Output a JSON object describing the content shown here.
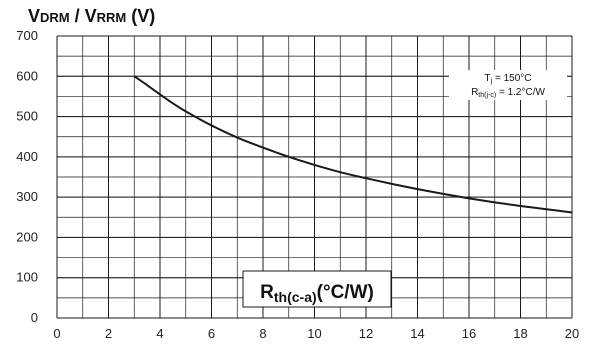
{
  "chart_data": {
    "type": "line",
    "title": {
      "v1_main": "V",
      "v1_sub": "DRM",
      "sep": " / ",
      "v2_main": "V",
      "v2_sub": "RRM",
      "unit": " (V)"
    },
    "xlabel": {
      "main": "R",
      "sub": "th(c-a)",
      "unit": "(°C/W)"
    },
    "annotation": {
      "line1_main": "T",
      "line1_sub": "j",
      "line1_rest": " = 150°C",
      "line2_main": "R",
      "line2_sub": "th(j-c)",
      "line2_rest": " = 1.2°C/W"
    },
    "xlim": [
      0,
      20
    ],
    "ylim": [
      0,
      700
    ],
    "x_ticks": [
      0,
      2,
      4,
      6,
      8,
      10,
      12,
      14,
      16,
      18,
      20
    ],
    "y_ticks": [
      0,
      100,
      200,
      300,
      400,
      500,
      600,
      700
    ],
    "minor_grid_x_step": 1,
    "minor_grid_y_step": 50,
    "grid": true,
    "series": [
      {
        "x": [
          3.0,
          3.5,
          4.0,
          4.5,
          5.0,
          6.0,
          7.0,
          8.0,
          9.0,
          10.0,
          11.0,
          12.0,
          13.0,
          14.0,
          15.0,
          16.0,
          17.0,
          18.0,
          19.0,
          20.0
        ],
        "y": [
          600,
          578,
          555,
          533,
          513,
          478,
          448,
          423,
          400,
          380,
          362,
          347,
          333,
          320,
          308,
          297,
          287,
          278,
          270,
          262
        ]
      }
    ],
    "colors": {
      "line": "#1a1a1a",
      "grid": "#1a1a1a",
      "label_bg": "#ffffff"
    }
  }
}
